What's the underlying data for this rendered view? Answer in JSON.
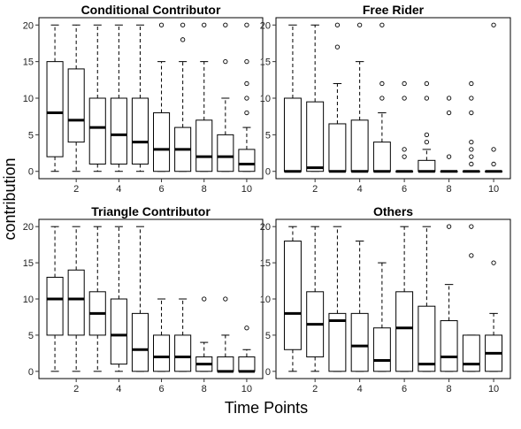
{
  "chart_data": {
    "type": "boxplot",
    "xlabel": "Time Points",
    "ylabel": "contribution",
    "ylim": [
      -1,
      21
    ],
    "yticks": [
      0,
      5,
      10,
      15,
      20
    ],
    "xticks": [
      2,
      4,
      6,
      8,
      10
    ],
    "grid": false,
    "panels": [
      {
        "title": "Conditional Contributor",
        "boxes": [
          {
            "x": 1,
            "min": 0,
            "q1": 2,
            "median": 8,
            "q3": 15,
            "max": 20,
            "outliers": []
          },
          {
            "x": 2,
            "min": 0,
            "q1": 4,
            "median": 7,
            "q3": 14,
            "max": 20,
            "outliers": []
          },
          {
            "x": 3,
            "min": 0,
            "q1": 1,
            "median": 6,
            "q3": 10,
            "max": 20,
            "outliers": []
          },
          {
            "x": 4,
            "min": 0,
            "q1": 1,
            "median": 5,
            "q3": 10,
            "max": 20,
            "outliers": []
          },
          {
            "x": 5,
            "min": 0,
            "q1": 1,
            "median": 4,
            "q3": 10,
            "max": 20,
            "outliers": []
          },
          {
            "x": 6,
            "min": 0,
            "q1": 0,
            "median": 3,
            "q3": 8,
            "max": 15,
            "outliers": [
              20
            ]
          },
          {
            "x": 7,
            "min": 0,
            "q1": 0,
            "median": 3,
            "q3": 6,
            "max": 15,
            "outliers": [
              18,
              20
            ]
          },
          {
            "x": 8,
            "min": 0,
            "q1": 0,
            "median": 2,
            "q3": 7,
            "max": 15,
            "outliers": [
              20
            ]
          },
          {
            "x": 9,
            "min": 0,
            "q1": 0,
            "median": 2,
            "q3": 5,
            "max": 10,
            "outliers": [
              15,
              20
            ]
          },
          {
            "x": 10,
            "min": 0,
            "q1": 0,
            "median": 1,
            "q3": 3,
            "max": 6,
            "outliers": [
              8,
              10,
              12,
              15,
              20
            ]
          }
        ]
      },
      {
        "title": "Free Rider",
        "boxes": [
          {
            "x": 1,
            "min": 0,
            "q1": 0,
            "median": 0,
            "q3": 10,
            "max": 20,
            "outliers": []
          },
          {
            "x": 2,
            "min": 0,
            "q1": 0,
            "median": 0.5,
            "q3": 9.5,
            "max": 20,
            "outliers": []
          },
          {
            "x": 3,
            "min": 0,
            "q1": 0,
            "median": 0,
            "q3": 6.5,
            "max": 12,
            "outliers": [
              17,
              20
            ]
          },
          {
            "x": 4,
            "min": 0,
            "q1": 0,
            "median": 0,
            "q3": 7,
            "max": 15,
            "outliers": [
              20
            ]
          },
          {
            "x": 5,
            "min": 0,
            "q1": 0,
            "median": 0,
            "q3": 4,
            "max": 8,
            "outliers": [
              10,
              12,
              20
            ]
          },
          {
            "x": 6,
            "min": 0,
            "q1": 0,
            "median": 0,
            "q3": 0,
            "max": 0,
            "outliers": [
              2,
              3,
              10,
              12
            ]
          },
          {
            "x": 7,
            "min": 0,
            "q1": 0,
            "median": 0,
            "q3": 1.5,
            "max": 3,
            "outliers": [
              4,
              5,
              10,
              12
            ]
          },
          {
            "x": 8,
            "min": 0,
            "q1": 0,
            "median": 0,
            "q3": 0,
            "max": 0,
            "outliers": [
              2,
              8,
              10
            ]
          },
          {
            "x": 9,
            "min": 0,
            "q1": 0,
            "median": 0,
            "q3": 0,
            "max": 0,
            "outliers": [
              1,
              2,
              3,
              4,
              8,
              10,
              12
            ]
          },
          {
            "x": 10,
            "min": 0,
            "q1": 0,
            "median": 0,
            "q3": 0,
            "max": 0,
            "outliers": [
              1,
              3,
              20
            ]
          }
        ]
      },
      {
        "title": "Triangle Contributor",
        "boxes": [
          {
            "x": 1,
            "min": 0,
            "q1": 5,
            "median": 10,
            "q3": 13,
            "max": 20,
            "outliers": []
          },
          {
            "x": 2,
            "min": 0,
            "q1": 5,
            "median": 10,
            "q3": 14,
            "max": 20,
            "outliers": []
          },
          {
            "x": 3,
            "min": 0,
            "q1": 5,
            "median": 8,
            "q3": 11,
            "max": 20,
            "outliers": []
          },
          {
            "x": 4,
            "min": 0,
            "q1": 1,
            "median": 5,
            "q3": 10,
            "max": 20,
            "outliers": []
          },
          {
            "x": 5,
            "min": 0,
            "q1": 0,
            "median": 3,
            "q3": 8,
            "max": 20,
            "outliers": []
          },
          {
            "x": 6,
            "min": 0,
            "q1": 0,
            "median": 2,
            "q3": 5,
            "max": 10,
            "outliers": []
          },
          {
            "x": 7,
            "min": 0,
            "q1": 0,
            "median": 2,
            "q3": 5,
            "max": 10,
            "outliers": []
          },
          {
            "x": 8,
            "min": 0,
            "q1": 0,
            "median": 1,
            "q3": 2,
            "max": 4,
            "outliers": [
              10
            ]
          },
          {
            "x": 9,
            "min": 0,
            "q1": 0,
            "median": 0,
            "q3": 2,
            "max": 5,
            "outliers": [
              10
            ]
          },
          {
            "x": 10,
            "min": 0,
            "q1": 0,
            "median": 0,
            "q3": 2,
            "max": 3,
            "outliers": [
              6
            ]
          }
        ]
      },
      {
        "title": "Others",
        "boxes": [
          {
            "x": 1,
            "min": 0,
            "q1": 3,
            "median": 8,
            "q3": 18,
            "max": 20,
            "outliers": []
          },
          {
            "x": 2,
            "min": 0,
            "q1": 2,
            "median": 6.5,
            "q3": 11,
            "max": 20,
            "outliers": []
          },
          {
            "x": 3,
            "min": 0,
            "q1": 0,
            "median": 7,
            "q3": 8,
            "max": 20,
            "outliers": []
          },
          {
            "x": 4,
            "min": 0,
            "q1": 0,
            "median": 3.5,
            "q3": 8,
            "max": 18,
            "outliers": []
          },
          {
            "x": 5,
            "min": 0,
            "q1": 0,
            "median": 1.5,
            "q3": 6,
            "max": 15,
            "outliers": []
          },
          {
            "x": 6,
            "min": 0,
            "q1": 0,
            "median": 6,
            "q3": 11,
            "max": 20,
            "outliers": []
          },
          {
            "x": 7,
            "min": 0,
            "q1": 0,
            "median": 1,
            "q3": 9,
            "max": 20,
            "outliers": []
          },
          {
            "x": 8,
            "min": 0,
            "q1": 0,
            "median": 2,
            "q3": 7,
            "max": 12,
            "outliers": [
              20
            ]
          },
          {
            "x": 9,
            "min": 0,
            "q1": 0,
            "median": 1,
            "q3": 5,
            "max": 5,
            "outliers": [
              16,
              20
            ]
          },
          {
            "x": 10,
            "min": 0,
            "q1": 0,
            "median": 2.5,
            "q3": 5,
            "max": 8,
            "outliers": [
              15
            ]
          }
        ]
      }
    ]
  }
}
